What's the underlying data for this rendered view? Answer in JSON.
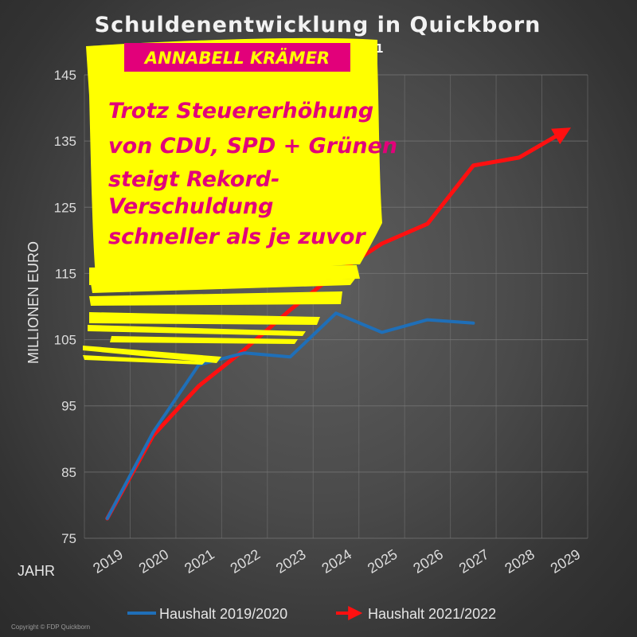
{
  "header": {
    "title": "Schuldenentwicklung in Quickborn",
    "year_note": "2021",
    "banner": "ANNABELL KRÄMER"
  },
  "callout": {
    "lines": [
      "Trotz Steuererhöhung",
      "von CDU, SPD + Grünen",
      "steigt Rekord-",
      "Verschuldung",
      "schneller als je zuvor"
    ]
  },
  "footer": {
    "copyright": "Copyright © FDP Quickborn"
  },
  "colors": {
    "series_blue": "#1f6fb8",
    "series_red": "#ff1010",
    "highlight_yellow": "#ffff00",
    "magenta": "#e2007a"
  },
  "chart_data": {
    "type": "line",
    "title": "Schuldenentwicklung in Quickborn",
    "xlabel": "JAHR",
    "ylabel": "MILLIONEN EURO",
    "x": [
      "2019",
      "2020",
      "2021",
      "2022",
      "2023",
      "2024",
      "2025",
      "2026",
      "2027",
      "2028",
      "2029"
    ],
    "yticks": [
      75,
      85,
      95,
      105,
      115,
      125,
      135,
      145
    ],
    "ylim": [
      75,
      145
    ],
    "grid": true,
    "legend_position": "bottom",
    "series": [
      {
        "name": "Haushalt 2019/2020",
        "color": "#1f6fb8",
        "values": [
          78,
          91,
          101.2,
          103,
          102.4,
          109,
          106.1,
          108,
          107.5,
          null,
          null
        ]
      },
      {
        "name": "Haushalt 2021/2022",
        "color": "#ff1010",
        "values": [
          78,
          90.5,
          98,
          103.5,
          109.5,
          115,
          119.5,
          122.5,
          131.3,
          132.5,
          136.5
        ]
      }
    ]
  }
}
